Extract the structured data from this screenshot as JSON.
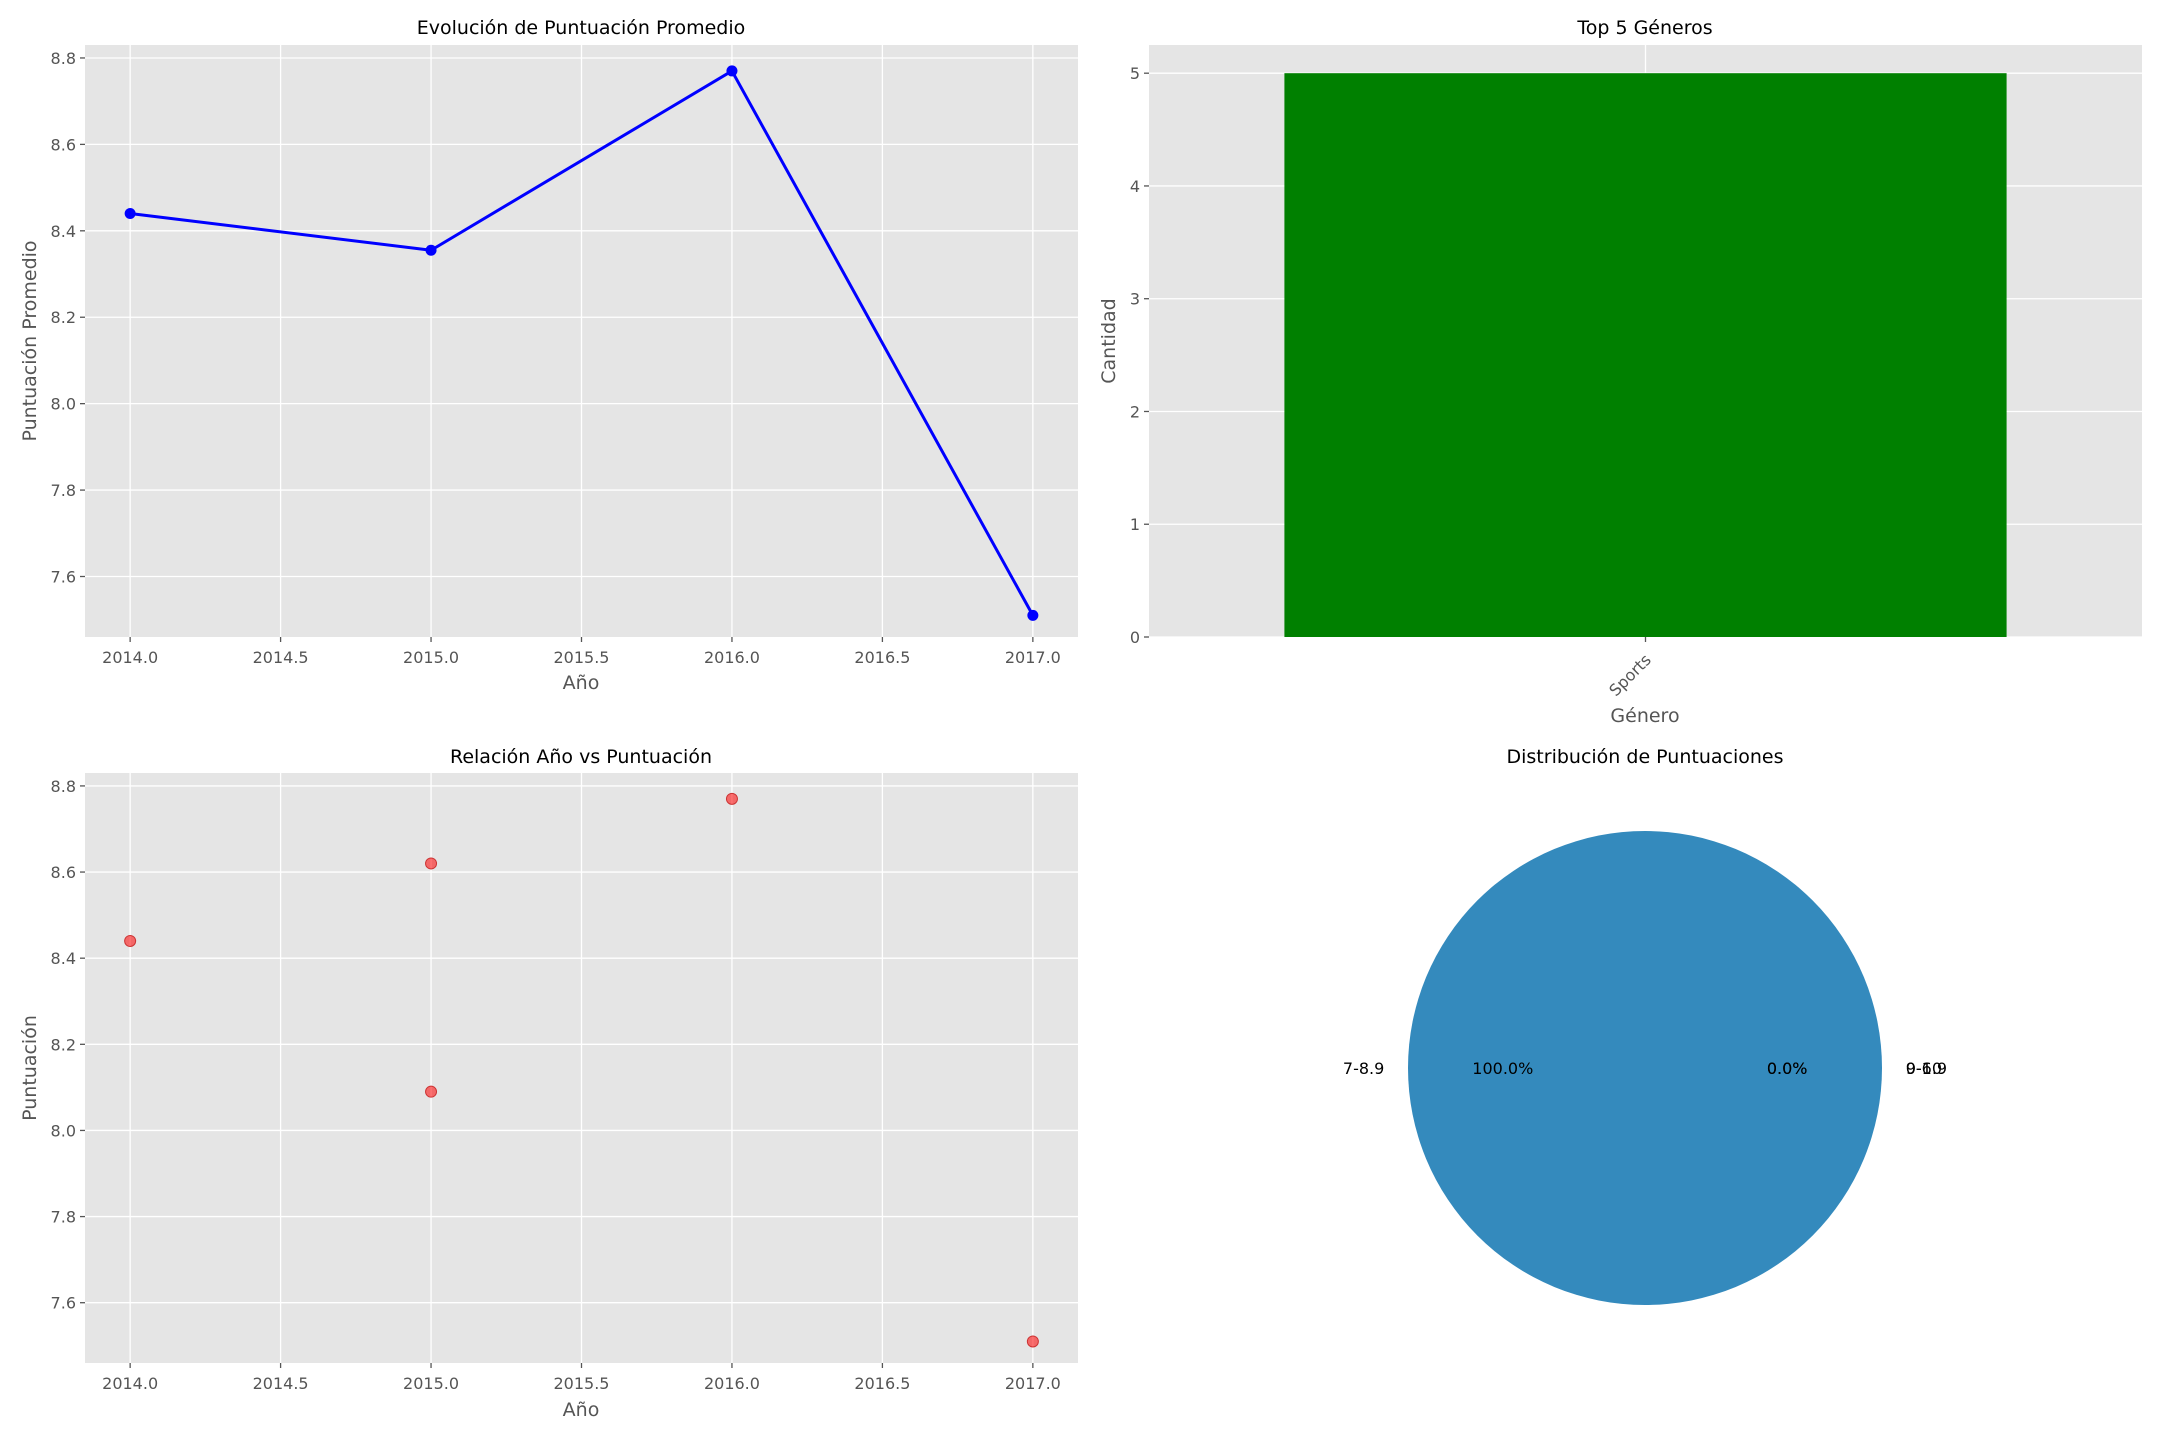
{
  "chart_data": [
    {
      "type": "line",
      "title": "Evolución de Puntuación Promedio",
      "xlabel": "Año",
      "ylabel": "Puntuación Promedio",
      "x": [
        2014,
        2015,
        2016,
        2017
      ],
      "y": [
        8.44,
        8.355,
        8.77,
        7.51
      ],
      "xlim": [
        2013.85,
        2017.15
      ],
      "ylim": [
        7.46,
        8.83
      ],
      "xticks": [
        2014.0,
        2014.5,
        2015.0,
        2015.5,
        2016.0,
        2016.5,
        2017.0
      ],
      "xtick_labels": [
        "2014.0",
        "2014.5",
        "2015.0",
        "2015.5",
        "2016.0",
        "2016.5",
        "2017.0"
      ],
      "yticks": [
        7.6,
        7.8,
        8.0,
        8.2,
        8.4,
        8.6,
        8.8
      ],
      "ytick_labels": [
        "7.6",
        "7.8",
        "8.0",
        "8.2",
        "8.4",
        "8.6",
        "8.8"
      ],
      "color": "#0000ff",
      "grid": true
    },
    {
      "type": "bar",
      "title": "Top 5 Géneros",
      "xlabel": "Género",
      "ylabel": "Cantidad",
      "categories": [
        "Sports"
      ],
      "values": [
        5
      ],
      "ylim": [
        0,
        5.25
      ],
      "yticks": [
        0,
        1,
        2,
        3,
        4,
        5
      ],
      "ytick_labels": [
        "0",
        "1",
        "2",
        "3",
        "4",
        "5"
      ],
      "color": "#008000",
      "grid": true
    },
    {
      "type": "scatter",
      "title": "Relación Año vs Puntuación",
      "xlabel": "Año",
      "ylabel": "Puntuación",
      "x": [
        2014,
        2015,
        2015,
        2016,
        2017
      ],
      "y": [
        8.44,
        8.62,
        8.09,
        8.77,
        7.51
      ],
      "xlim": [
        2013.85,
        2017.15
      ],
      "ylim": [
        7.46,
        8.83
      ],
      "xticks": [
        2014.0,
        2014.5,
        2015.0,
        2015.5,
        2016.0,
        2016.5,
        2017.0
      ],
      "xtick_labels": [
        "2014.0",
        "2014.5",
        "2015.0",
        "2015.5",
        "2016.0",
        "2016.5",
        "2017.0"
      ],
      "yticks": [
        7.6,
        7.8,
        8.0,
        8.2,
        8.4,
        8.6,
        8.8
      ],
      "ytick_labels": [
        "7.6",
        "7.8",
        "8.0",
        "8.2",
        "8.4",
        "8.6",
        "8.8"
      ],
      "color": "#ff0000",
      "grid": true
    },
    {
      "type": "pie",
      "title": "Distribución de Puntuaciones",
      "labels": [
        "7-8.9",
        "9-10",
        "0-6.9"
      ],
      "values": [
        100,
        0,
        0
      ],
      "pct_labels": [
        "100.0%",
        "0.0%",
        "0.0%"
      ],
      "colors": [
        "#348abd",
        "#e24a33",
        "#988ed5"
      ]
    }
  ],
  "style": {
    "axes_bg": "#e5e5e5",
    "grid_color": "#ffffff"
  }
}
